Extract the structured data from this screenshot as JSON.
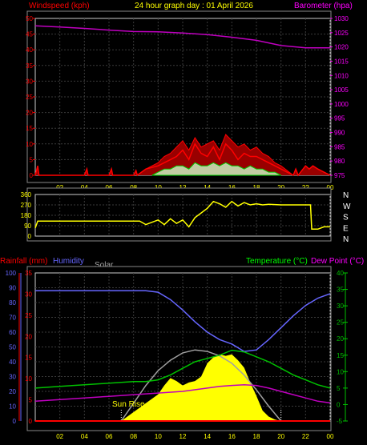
{
  "header": {
    "windspeed_label": "Windspeed (kph)",
    "graph_title": "24 hour graph day : 01 April 2026",
    "barometer_label": "Barometer (hpa)"
  },
  "labels": {
    "rainfall": "Rainfall (mm)",
    "humidity": "Humidity",
    "solar": "Solar",
    "temperature": "Temperature (°C)",
    "dewpoint": "Dew Point (°C)",
    "sunrise": "Sun Rise"
  },
  "colors": {
    "wind": "#ff0000",
    "gust_light": "#ffffff",
    "gust_dark": "#00cc00",
    "barometer": "#c000c0",
    "direction": "#ffff00",
    "humidity": "#6666ff",
    "solar_curve": "#a0a0a0",
    "solar_fill": "#ffff00",
    "temperature": "#00c000",
    "dewpoint": "#c000c0",
    "rain": "#ff0000",
    "grid": "#3a3a3a"
  },
  "chart_data": [
    {
      "type": "line",
      "name": "wind-barometer",
      "x_ticks": [
        "02",
        "04",
        "06",
        "08",
        "10",
        "12",
        "14",
        "16",
        "18",
        "20",
        "22",
        "00"
      ],
      "left_ticks": [
        "0",
        "5",
        "10",
        "15",
        "20",
        "25",
        "30",
        "35",
        "40",
        "45",
        "50"
      ],
      "right_ticks": [
        "975",
        "980",
        "985",
        "990",
        "995",
        "1000",
        "1005",
        "1010",
        "1015",
        "1020",
        "1025",
        "1030"
      ],
      "ylim_left": [
        0,
        50
      ],
      "ylim_right": [
        975,
        1030
      ],
      "barometer": {
        "x": [
          0,
          2,
          4,
          6,
          8,
          10,
          12,
          14,
          16,
          18,
          20,
          22,
          24
        ],
        "values": [
          1027.4,
          1027.0,
          1026.5,
          1025.9,
          1025.4,
          1025.3,
          1024.9,
          1024.3,
          1023.4,
          1022.3,
          1020.5,
          1019.7,
          1019.7
        ]
      },
      "wind": {
        "x": [
          0,
          0.2,
          0.3,
          1,
          4,
          4.2,
          4.3,
          6,
          6.2,
          6.3,
          8,
          8.2,
          8.3,
          9,
          10,
          10.5,
          11,
          11.5,
          12,
          12.5,
          13,
          13.5,
          14,
          14.5,
          15,
          15.5,
          16,
          16.5,
          17,
          17.5,
          18,
          18.5,
          19,
          19.5,
          20,
          21,
          21.2,
          21.4,
          22,
          22.3,
          22.6,
          23,
          23.5,
          24
        ],
        "values": [
          0,
          3,
          0,
          0,
          0,
          2,
          0,
          0,
          2,
          0,
          0,
          1.5,
          0,
          2,
          3,
          4,
          5,
          6,
          8,
          5,
          10,
          7,
          6,
          9,
          5,
          10,
          8,
          5,
          7,
          6,
          6,
          5,
          4,
          3,
          2,
          0,
          2,
          0,
          3,
          2,
          3,
          2,
          1,
          0
        ],
        "peak_values": [
          0,
          3,
          0,
          0,
          0,
          2,
          0,
          0,
          2,
          0,
          0,
          1.5,
          0,
          2,
          4,
          6,
          7,
          9,
          11,
          8,
          12,
          9,
          10,
          11,
          8,
          13,
          11,
          9,
          10,
          8,
          9,
          7,
          6,
          4,
          3,
          0,
          2,
          0,
          3,
          2,
          3,
          2,
          1,
          0
        ]
      },
      "gust": {
        "x": [
          9.5,
          10,
          10.5,
          11,
          11.5,
          12,
          12.5,
          13,
          13.5,
          14,
          14.5,
          15,
          15.5,
          16,
          16.5,
          17,
          17.5,
          18,
          18.5,
          19,
          19.5,
          20
        ],
        "values": [
          0,
          1,
          2,
          2,
          3,
          3,
          2,
          4,
          3,
          3,
          4,
          3,
          4,
          3,
          3,
          2,
          3,
          2,
          2,
          1,
          1,
          0
        ]
      }
    },
    {
      "type": "line",
      "name": "wind-direction",
      "left_ticks": [
        "0",
        "90",
        "180",
        "270",
        "360"
      ],
      "right_labels": [
        "N",
        "W",
        "S",
        "E",
        "N"
      ],
      "ylim": [
        0,
        360
      ],
      "x": [
        0,
        0.2,
        1,
        2,
        4,
        6,
        8,
        8.5,
        9,
        9.5,
        10,
        10.5,
        11,
        11.5,
        12,
        12.5,
        13,
        13.5,
        14,
        14.5,
        15,
        15.5,
        16,
        16.5,
        17,
        17.5,
        18,
        18.5,
        19,
        20,
        21,
        22,
        22.4,
        22.5,
        23,
        23.5,
        24
      ],
      "values": [
        70,
        130,
        130,
        130,
        130,
        130,
        130,
        130,
        100,
        120,
        140,
        100,
        150,
        110,
        140,
        80,
        160,
        200,
        240,
        300,
        280,
        250,
        300,
        260,
        290,
        270,
        280,
        270,
        275,
        270,
        270,
        270,
        270,
        60,
        60,
        80,
        80
      ]
    },
    {
      "type": "area",
      "name": "rain-humidity-solar-temperature",
      "x_ticks": [
        "02",
        "04",
        "06",
        "08",
        "10",
        "12",
        "14",
        "16",
        "18",
        "20",
        "22",
        "00"
      ],
      "humidity_ticks": [
        "0",
        "10",
        "20",
        "30",
        "40",
        "50",
        "60",
        "70",
        "80",
        "90",
        "100"
      ],
      "rain_ticks": [
        "0",
        "5",
        "10",
        "15",
        "20",
        "25",
        "30",
        "35"
      ],
      "temp_ticks": [
        "-5",
        "0",
        "5",
        "10",
        "15",
        "20",
        "25",
        "30",
        "35",
        "40"
      ],
      "ylim_humidity": [
        0,
        100
      ],
      "ylim_rain": [
        0,
        35
      ],
      "ylim_temperature": [
        -5,
        40
      ],
      "humidity": {
        "x": [
          0,
          2,
          4,
          6,
          8,
          9,
          10,
          11,
          12,
          13,
          14,
          15,
          16,
          17,
          18,
          19,
          20,
          21,
          22,
          23,
          24
        ],
        "values": [
          88,
          88,
          88,
          88,
          88,
          88,
          87,
          82,
          75,
          67,
          60,
          55,
          52,
          47,
          48,
          55,
          63,
          71,
          78,
          83,
          86
        ]
      },
      "temperature": {
        "x": [
          0,
          2,
          4,
          6,
          8,
          9,
          10,
          11,
          12,
          13,
          14,
          15,
          16,
          17,
          18,
          19,
          20,
          21,
          22,
          23,
          24
        ],
        "values": [
          5.0,
          5.5,
          6.0,
          6.5,
          7.0,
          7.0,
          7.5,
          9.0,
          11.0,
          13.0,
          14.0,
          15.0,
          16.5,
          16.0,
          14.5,
          13.0,
          11.0,
          9.0,
          7.5,
          6.0,
          5.0
        ]
      },
      "dew_point": {
        "x": [
          0,
          2,
          4,
          6,
          8,
          10,
          12,
          14,
          15,
          16,
          17,
          18,
          19,
          20,
          21,
          22,
          23,
          24
        ],
        "values": [
          1.0,
          1.5,
          2.0,
          2.5,
          3.0,
          3.5,
          4.0,
          5.0,
          5.5,
          5.8,
          6.0,
          5.8,
          5.0,
          4.0,
          3.0,
          2.0,
          1.0,
          0.5
        ]
      },
      "solar": {
        "x": [
          7,
          8,
          9,
          10,
          11,
          12,
          13,
          14,
          15,
          16,
          17,
          18,
          19,
          20
        ],
        "values": [
          0,
          12,
          24,
          34,
          41,
          46,
          48,
          47,
          44,
          39,
          31,
          21,
          10,
          0
        ]
      },
      "solar_fill": {
        "x": [
          7,
          8,
          9,
          10,
          10.5,
          11,
          11.5,
          12,
          12.5,
          13,
          13.5,
          14,
          14.5,
          15,
          15.5,
          16,
          16.5,
          17,
          17.5,
          18,
          18.5,
          19,
          19.5,
          20
        ],
        "values": [
          0,
          6,
          12,
          18,
          24,
          29,
          27,
          24,
          26,
          27,
          30,
          39,
          43,
          45,
          44,
          45,
          41,
          36,
          26,
          17,
          7,
          3,
          1,
          0
        ]
      },
      "rain": {
        "x": [
          0,
          24
        ],
        "values": [
          0,
          0
        ]
      }
    }
  ]
}
